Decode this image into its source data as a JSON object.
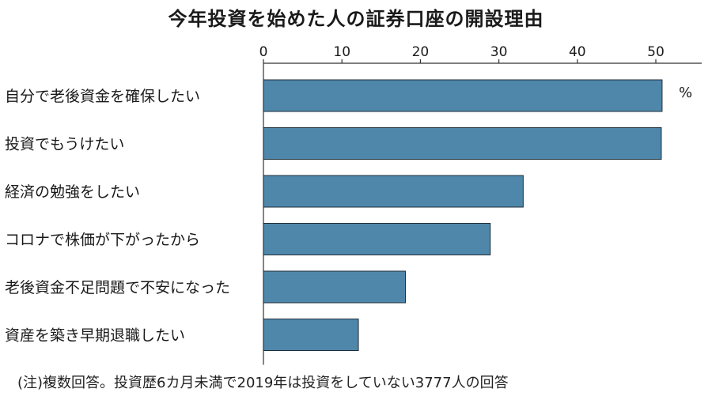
{
  "title": "今年投資を始めた人の証券口座の開設理由",
  "note": "(注)複数回答。投資歴6カ月未満で2019年は投資をしていない3777人の回答",
  "chart_data": {
    "type": "bar",
    "orientation": "horizontal",
    "title": "今年投資を始めた人の証券口座の開設理由",
    "unit": "%",
    "categories": [
      "自分で老後資金を確保したい",
      "投資でもうけたい",
      "経済の勉強をしたい",
      "コロナで株価が下がったから",
      "老後資金不足問題で不安になった",
      "資産を築き早期退職したい"
    ],
    "values": [
      50.8,
      50.7,
      33.1,
      28.9,
      18.1,
      12.1
    ],
    "xlim": [
      0,
      56
    ],
    "xticks": [
      0,
      10,
      20,
      30,
      40,
      50
    ],
    "axis_position": "top",
    "grid": false,
    "bar_color": "#4f87ab",
    "bar_edge_color": "#1f2f3a"
  }
}
